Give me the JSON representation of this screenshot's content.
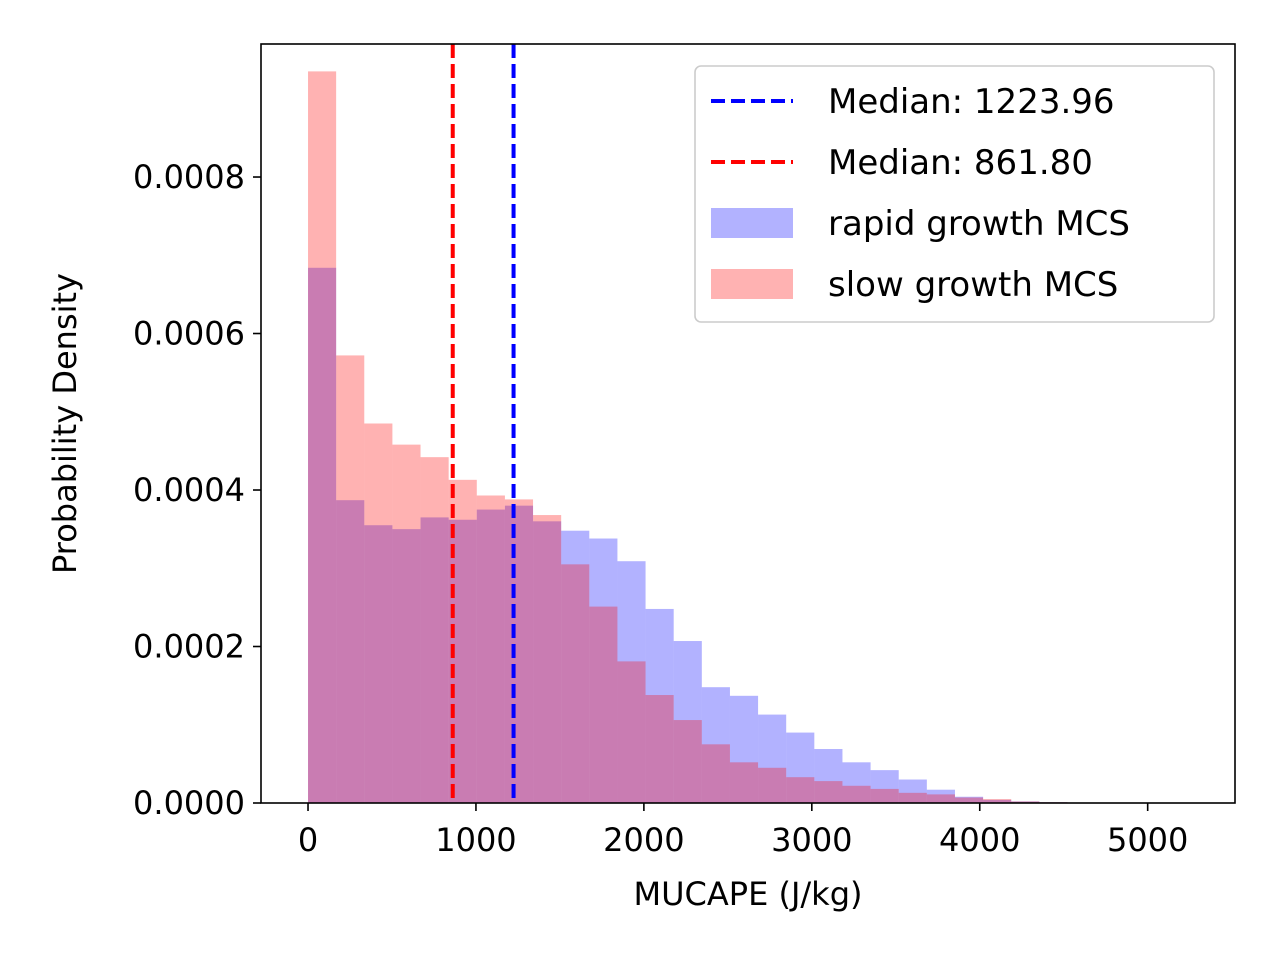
{
  "chart_data": {
    "type": "histogram",
    "xlabel": "MUCAPE (J/kg)",
    "ylabel": "Probability Density",
    "xlim": [
      -280,
      5520
    ],
    "ylim": [
      0,
      0.00097
    ],
    "xticks": [
      0,
      1000,
      2000,
      3000,
      4000,
      5000
    ],
    "xtick_labels": [
      "0",
      "1000",
      "2000",
      "3000",
      "4000",
      "5000"
    ],
    "yticks": [
      0,
      0.0002,
      0.0004,
      0.0006,
      0.0008
    ],
    "ytick_labels": [
      "0.0000",
      "0.0002",
      "0.0004",
      "0.0006",
      "0.0008"
    ],
    "bin_width": 167.5,
    "series": [
      {
        "name": "rapid growth MCS",
        "color": "#0000ff",
        "opacity": 0.3,
        "values": [
          0.000684,
          0.000387,
          0.000355,
          0.00035,
          0.000365,
          0.000362,
          0.000375,
          0.00038,
          0.00036,
          0.000348,
          0.000338,
          0.000309,
          0.000248,
          0.000207,
          0.000148,
          0.000137,
          0.000113,
          9e-05,
          6.9e-05,
          5.2e-05,
          4.2e-05,
          3e-05,
          1.7e-05,
          8e-06,
          4e-06,
          2e-06,
          1e-06,
          5e-07,
          3e-07,
          2e-07,
          1e-07,
          8e-08
        ]
      },
      {
        "name": "slow growth MCS",
        "color": "#ff0000",
        "opacity": 0.3,
        "values": [
          0.000935,
          0.000572,
          0.000485,
          0.000458,
          0.000442,
          0.000413,
          0.000393,
          0.000388,
          0.000368,
          0.000305,
          0.000251,
          0.000181,
          0.000138,
          0.000106,
          7.5e-05,
          5.2e-05,
          4.5e-05,
          3.3e-05,
          2.8e-05,
          2.2e-05,
          1.8e-05,
          1.3e-05,
          1.1e-05,
          7e-06,
          5e-06,
          2e-06,
          1e-06,
          5e-07,
          2e-07,
          1e-07,
          5e-08,
          2e-08
        ]
      }
    ],
    "medians": [
      {
        "label": "Median: 1223.96",
        "value": 1223.96,
        "color": "#0000ff"
      },
      {
        "label": "Median: 861.80",
        "value": 861.8,
        "color": "#ff0000"
      }
    ],
    "legend": {
      "position": "top-right",
      "entries": [
        {
          "label": "Median: 1223.96",
          "kind": "dashed-line",
          "color": "#0000ff"
        },
        {
          "label": "Median: 861.80",
          "kind": "dashed-line",
          "color": "#ff0000"
        },
        {
          "label": "rapid growth MCS",
          "kind": "patch",
          "color": "#0000ff"
        },
        {
          "label": "slow growth MCS",
          "kind": "patch",
          "color": "#ff0000"
        }
      ]
    }
  }
}
